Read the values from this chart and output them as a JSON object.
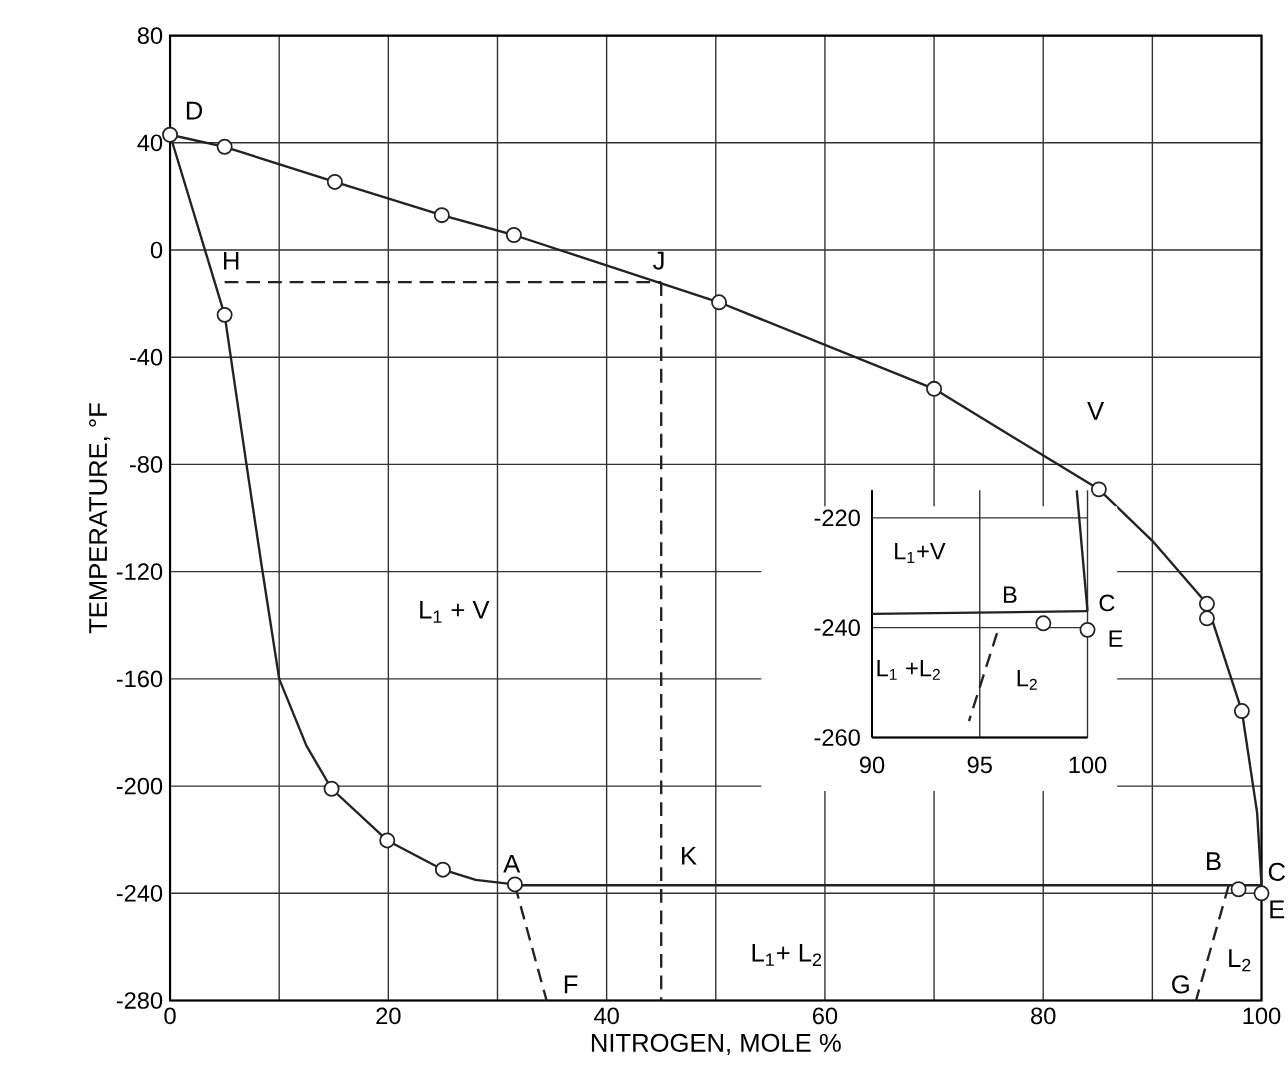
{
  "chart_data": [
    {
      "type": "line",
      "xlabel": "NITROGEN, MOLE %",
      "ylabel": "TEMPERATURE, °F",
      "xlim": [
        0,
        100
      ],
      "ylim": [
        -280,
        80
      ],
      "xticks": [
        0,
        {
          "value": 10,
          "label": null
        },
        20,
        {
          "value": 30,
          "label": null
        },
        40,
        {
          "value": 50,
          "label": null
        },
        60,
        {
          "value": 70,
          "label": null
        },
        80,
        {
          "value": 90,
          "label": null
        },
        100
      ],
      "yticks": [
        -280,
        -240,
        -200,
        -160,
        -120,
        -80,
        -40,
        0,
        40,
        80
      ],
      "grid": true,
      "marker": "none",
      "line_style": "solid",
      "series": [
        {
          "color": "#222222",
          "x": [
            0,
            5,
            15.1,
            24.9,
            31.5,
            50.3,
            70,
            85.1,
            90,
            95,
            98.2,
            99.6,
            100
          ],
          "values": [
            43,
            38.5,
            25.4,
            13,
            5.6,
            -19.5,
            -51.8,
            -89.3,
            -108.5,
            -132,
            -172,
            -210,
            -237
          ]
        },
        {
          "color": "#222222",
          "x": [
            0,
            5,
            7,
            8.4,
            10,
            12.5,
            14.8,
            19.9,
            25,
            28,
            31.6
          ],
          "values": [
            43,
            -24.2,
            -80,
            -118,
            -160,
            -185,
            -201,
            -220.3,
            -231.2,
            -235,
            -236.7
          ]
        },
        {
          "color": "#222222",
          "x": [
            31.6,
            100
          ],
          "values": [
            -237,
            -237
          ]
        },
        {
          "color": "#222222",
          "line_style": "dashed",
          "x": [
            5,
            45
          ],
          "values": [
            -12,
            -12
          ]
        },
        {
          "color": "#222222",
          "line_style": "dashed",
          "x": [
            45,
            45
          ],
          "values": [
            -12,
            -280
          ]
        },
        {
          "color": "#222222",
          "line_style": "dashed",
          "x": [
            31.6,
            34.5
          ],
          "values": [
            -237,
            -280
          ]
        },
        {
          "color": "#222222",
          "line_style": "dashed",
          "x": [
            97,
            94
          ],
          "values": [
            -237,
            -280
          ]
        },
        {
          "type": "scatter",
          "marker": "circle",
          "color": "#222222",
          "x": [
            0,
            5,
            15.1,
            24.9,
            31.5,
            50.3,
            70,
            85.1,
            95,
            95,
            98.2,
            5,
            14.8,
            19.9,
            25,
            31.6,
            97.9,
            100
          ],
          "values": [
            43,
            38.5,
            25.4,
            13,
            5.6,
            -19.5,
            -51.8,
            -89.3,
            -132,
            -137.4,
            -172,
            -24.2,
            -201,
            -220.3,
            -231.2,
            -236.7,
            -238.5,
            -240
          ]
        }
      ],
      "annotations": [
        "D",
        "H",
        "J",
        "V",
        "L$_{1}$ + V",
        "A",
        "K",
        "B",
        "C",
        "E",
        "L$_{1}$+ L$_{2}$",
        "L$_{2}$",
        "F",
        "G"
      ]
    },
    {
      "type": "line",
      "xlim": [
        90,
        100
      ],
      "ylim": [
        -260,
        -215
      ],
      "xticks": [
        90,
        95,
        100
      ],
      "yticks": [
        -260,
        -240,
        -220
      ],
      "grid": true,
      "marker": "none",
      "line_style": "solid",
      "series": [
        {
          "color": "#222222",
          "x": [
            90,
            100
          ],
          "values": [
            -237.5,
            -237
          ]
        },
        {
          "color": "#222222",
          "x": [
            99.5,
            100
          ],
          "values": [
            -215,
            -237
          ]
        },
        {
          "color": "#222222",
          "line_style": "dashed",
          "x": [
            95.8,
            94.5
          ],
          "values": [
            -241,
            -257
          ]
        },
        {
          "type": "scatter",
          "marker": "circle",
          "color": "#222222",
          "x": [
            97.95,
            100
          ],
          "values": [
            -239.2,
            -240.4
          ]
        }
      ],
      "annotations": [
        "L$_{1}$+V",
        "B",
        "C",
        "E",
        "L$_{1}$ +L$_{2}$",
        "L$_{2}$"
      ]
    }
  ]
}
